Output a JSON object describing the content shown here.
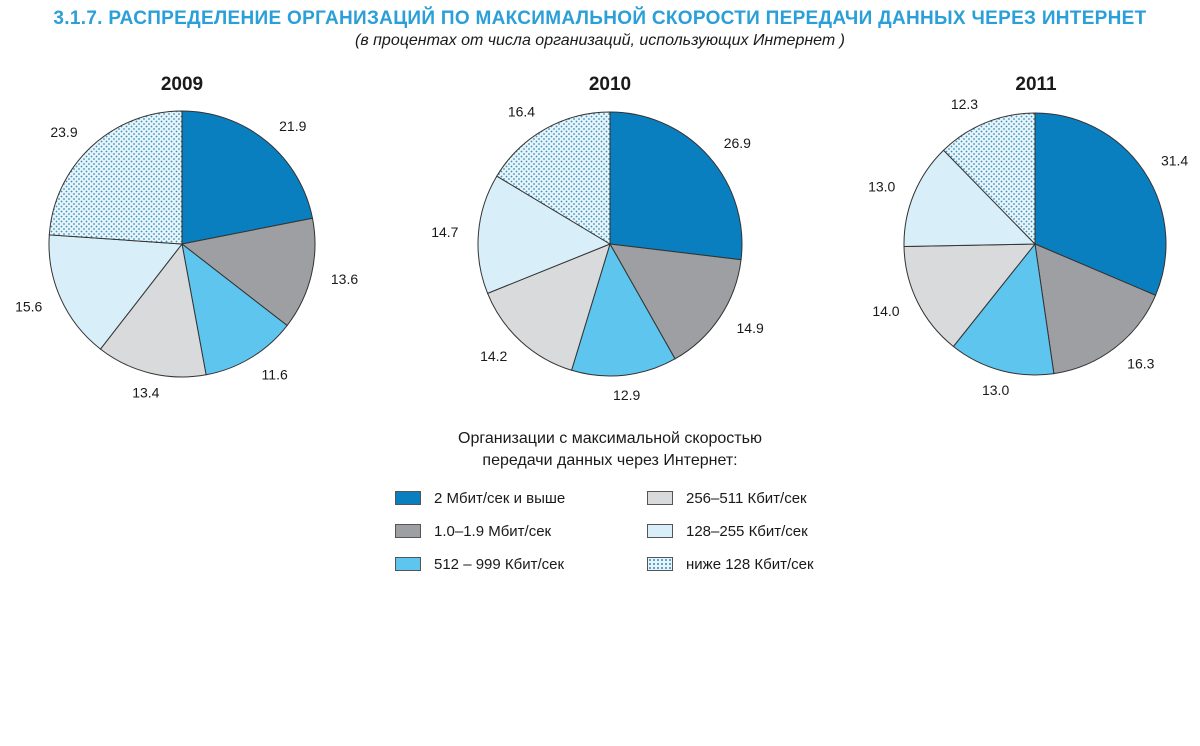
{
  "title": "3.1.7. РАСПРЕДЕЛЕНИЕ ОРГАНИЗАЦИЙ ПО МАКСИМАЛЬНОЙ СКОРОСТИ ПЕРЕДАЧИ ДАННЫХ ЧЕРЕЗ ИНТЕРНЕТ",
  "subtitle": "(в процентах от числа организаций, использующих Интернет )",
  "legend": {
    "title_line1": "Организации с максимальной скоростью",
    "title_line2": "передачи данных через Интернет:"
  },
  "categories": [
    {
      "label": "2 Мбит/сек и выше",
      "color": "#0a7fc0",
      "pattern": "solid"
    },
    {
      "label": "1.0–1.9 Мбит/сек",
      "color": "#9d9fa2",
      "pattern": "solid"
    },
    {
      "label": "512 – 999 Кбит/сек",
      "color": "#5ec5ee",
      "pattern": "solid"
    },
    {
      "label": "256–511 Кбит/сек",
      "color": "#d9dadc",
      "pattern": "solid"
    },
    {
      "label": "128–255 Кбит/сек",
      "color": "#d8eff9",
      "pattern": "solid"
    },
    {
      "label": "ниже 128  Кбит/сек",
      "color": "#e6f4fb",
      "pattern": "dotted"
    }
  ],
  "chart_data": [
    {
      "type": "pie",
      "title": "2009",
      "values": [
        21.9,
        13.6,
        11.6,
        13.4,
        15.6,
        23.9
      ],
      "value_labels": [
        "21.9",
        "13.6",
        "11.6",
        "13.4",
        "15.6",
        "23.9"
      ]
    },
    {
      "type": "pie",
      "title": "2010",
      "values": [
        26.9,
        14.9,
        12.9,
        14.2,
        14.7,
        16.4
      ],
      "value_labels": [
        "26.9",
        "14.9",
        "12.9",
        "14.2",
        "14.7",
        "16.4"
      ]
    },
    {
      "type": "pie",
      "title": "2011",
      "values": [
        31.4,
        16.3,
        13.0,
        14.0,
        13.0,
        12.3
      ],
      "value_labels": [
        "31.4",
        "16.3",
        "13.0",
        "14.0",
        "13.0",
        "12.3"
      ]
    }
  ]
}
